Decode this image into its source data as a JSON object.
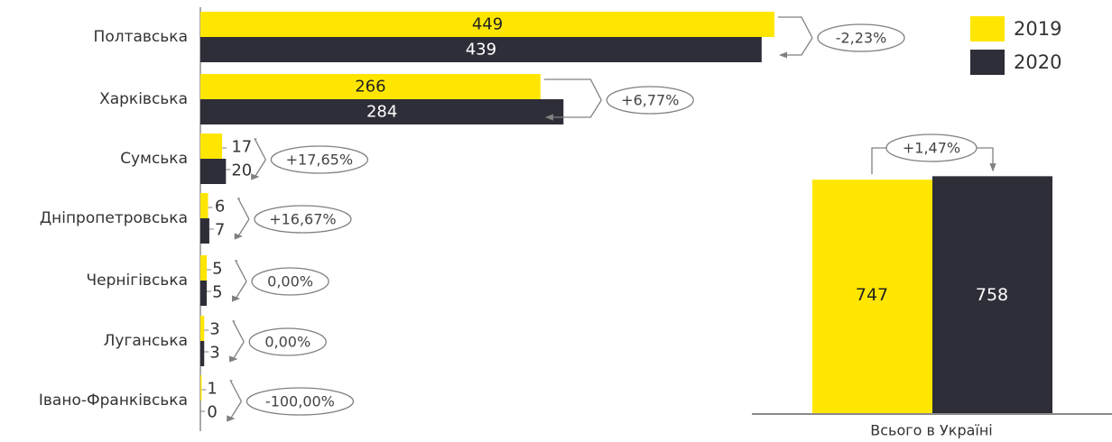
{
  "colors": {
    "y2019": "#FFE600",
    "y2020": "#2E2E38",
    "text": "#333333",
    "line": "#808080"
  },
  "legend": {
    "items": [
      "2019",
      "2020"
    ]
  },
  "chart_data": [
    {
      "type": "bar",
      "orientation": "horizontal",
      "categories": [
        "Полтавська",
        "Харківська",
        "Сумська",
        "Дніпропетровська",
        "Чернігівська",
        "Луганська",
        "Івано-Франківська"
      ],
      "series": [
        {
          "name": "2019",
          "values": [
            449,
            266,
            17,
            6,
            5,
            3,
            1
          ]
        },
        {
          "name": "2020",
          "values": [
            439,
            284,
            20,
            7,
            5,
            3,
            0
          ]
        }
      ],
      "changes": [
        "-2,23%",
        "+6,77%",
        "+17,65%",
        "+16,67%",
        "0,00%",
        "0,00%",
        "-100,00%"
      ],
      "legend_position": "top-right"
    },
    {
      "type": "bar",
      "categories": [
        "Всього в Україні"
      ],
      "series": [
        {
          "name": "2019",
          "values": [
            747
          ]
        },
        {
          "name": "2020",
          "values": [
            758
          ]
        }
      ],
      "change": "+1,47%"
    }
  ]
}
